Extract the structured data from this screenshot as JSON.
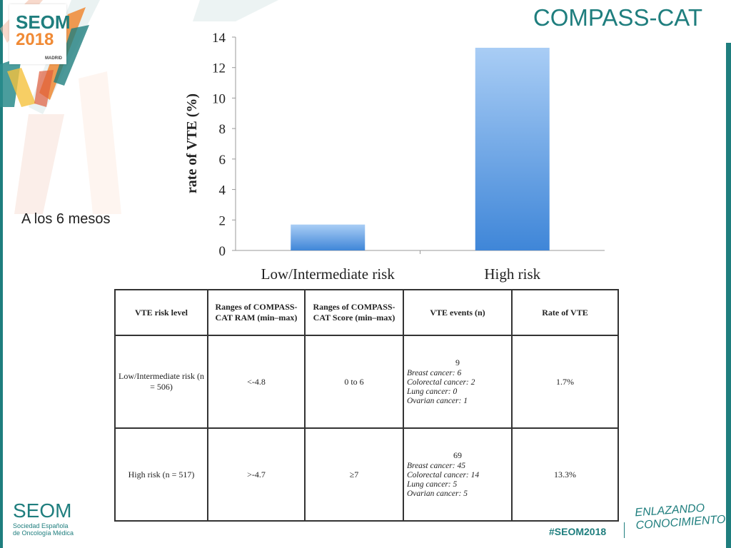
{
  "header": {
    "title": "COMPASS-CAT"
  },
  "logo": {
    "brand": "SEOM",
    "year": "2018",
    "city": "MADRID"
  },
  "side_note": "A los 6 mesos",
  "chart_data": {
    "type": "bar",
    "categories": [
      "Low/Intermediate risk",
      "High risk"
    ],
    "values": [
      1.7,
      13.3
    ],
    "title": "",
    "xlabel": "",
    "ylabel": "rate of VTE (%)",
    "ylim": [
      0,
      14
    ],
    "yticks": [
      0,
      2,
      4,
      6,
      8,
      10,
      12,
      14
    ],
    "grid": false,
    "bar_color": "#4a8fd8"
  },
  "table": {
    "headers": [
      "VTE risk level",
      "Ranges of COMPASS-CAT RAM (min–max)",
      "Ranges of COMPASS-CAT Score (min–max)",
      "VTE events (n)",
      "Rate of VTE"
    ],
    "rows": [
      {
        "risk_level": "Low/Intermediate risk (n = 506)",
        "ram_range": "<-4.8",
        "score_range": "0 to 6",
        "events_total": "9",
        "events_detail": [
          "Breast cancer: 6",
          "Colorectal cancer: 2",
          "Lung cancer: 0",
          "Ovarian cancer: 1"
        ],
        "rate": "1.7%"
      },
      {
        "risk_level": "High risk (n = 517)",
        "ram_range": ">-4.7",
        "score_range": "≥7",
        "events_total": "69",
        "events_detail": [
          "Breast cancer: 45",
          "Colorectal cancer: 14",
          "Lung cancer: 5",
          "Ovarian cancer: 5"
        ],
        "rate": "13.3%"
      }
    ]
  },
  "footer": {
    "brand": "SEOM",
    "society_line1": "Sociedad Española",
    "society_line2": "de Oncología Médica",
    "hashtag": "#SEOM2018",
    "slogan_line1": "ENLAZANDO",
    "slogan_line2": "CONOCIMIENTO"
  },
  "colors": {
    "accent": "#1f7e7e",
    "orange": "#f08a35"
  }
}
